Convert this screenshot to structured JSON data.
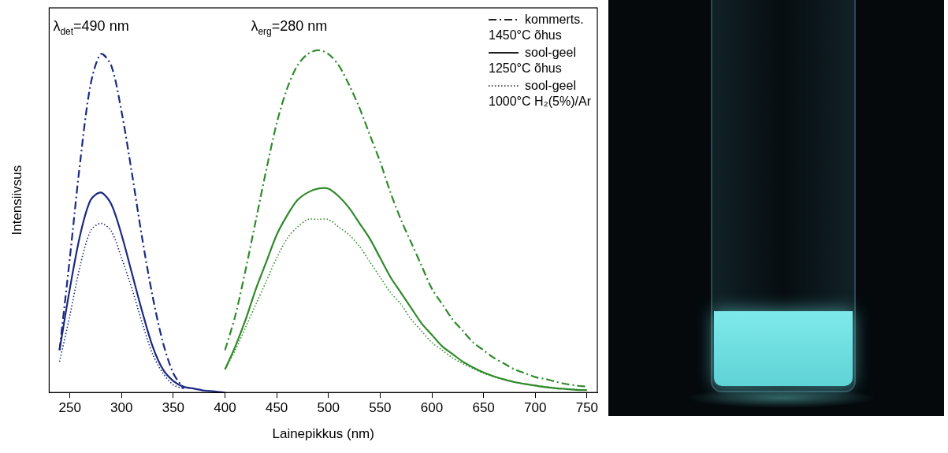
{
  "chart_data": {
    "type": "line",
    "x_label": "Lainepikkus (nm)",
    "y_label": "Intensiivsus",
    "annotations": [
      {
        "text": "λ",
        "subscript": "det",
        "text_after": "=490 nm"
      },
      {
        "text": "λ",
        "subscript": "erg",
        "text_after": "=280 nm"
      }
    ],
    "x": [
      240,
      250,
      260,
      270,
      280,
      290,
      300,
      310,
      320,
      330,
      340,
      350,
      360,
      370,
      380,
      390,
      400,
      410,
      420,
      430,
      440,
      450,
      460,
      470,
      480,
      490,
      500,
      510,
      520,
      530,
      540,
      550,
      560,
      570,
      580,
      590,
      600,
      610,
      620,
      630,
      640,
      650,
      660,
      670,
      680,
      690,
      700,
      710,
      720,
      730,
      740,
      750
    ],
    "series": [
      {
        "name": "kommerts.\n1450°C õhus",
        "color": "#1b2a80",
        "line_style": "dashdot",
        "values": [
          0.11,
          0.35,
          0.6,
          0.8,
          0.88,
          0.85,
          0.73,
          0.57,
          0.4,
          0.25,
          0.13,
          0.05,
          0.01,
          null,
          null,
          null,
          null,
          null,
          null,
          null,
          null,
          null,
          null,
          null,
          null,
          null,
          null,
          null,
          null,
          null,
          null,
          null,
          null,
          null,
          null,
          null,
          null,
          null,
          null,
          null,
          null,
          null,
          null,
          null,
          null,
          null,
          null,
          null,
          null,
          null,
          null,
          null
        ]
      },
      {
        "name": "sool-geel\n1250°C õhus",
        "color": "#1b2a80",
        "line_style": "solid",
        "values": [
          0.11,
          0.27,
          0.41,
          0.5,
          0.52,
          0.49,
          0.41,
          0.31,
          0.21,
          0.12,
          0.06,
          0.03,
          0.015,
          0.01,
          0.005,
          0.003,
          0,
          null,
          null,
          null,
          null,
          null,
          null,
          null,
          null,
          null,
          null,
          null,
          null,
          null,
          null,
          null,
          null,
          null,
          null,
          null,
          null,
          null,
          null,
          null,
          null,
          null,
          null,
          null,
          null,
          null,
          null,
          null,
          null,
          null,
          null,
          null
        ]
      },
      {
        "name": "sool-geel\n1000°C H₂(5%)/Ar",
        "color": "#1b2a80",
        "line_style": "dotted",
        "values": [
          0.08,
          0.2,
          0.33,
          0.42,
          0.44,
          0.42,
          0.35,
          0.27,
          0.18,
          0.1,
          0.05,
          0.02,
          0.01,
          null,
          null,
          null,
          null,
          null,
          null,
          null,
          null,
          null,
          null,
          null,
          null,
          null,
          null,
          null,
          null,
          null,
          null,
          null,
          null,
          null,
          null,
          null,
          null,
          null,
          null,
          null,
          null,
          null,
          null,
          null,
          null,
          null,
          null,
          null,
          null,
          null,
          null,
          null
        ]
      },
      {
        "name": "kommerts.\n1450°C õhus",
        "color": "#2f8a2a",
        "line_style": "dashdot",
        "values": [
          null,
          null,
          null,
          null,
          null,
          null,
          null,
          null,
          null,
          null,
          null,
          null,
          null,
          null,
          null,
          null,
          0.11,
          0.2,
          0.32,
          0.45,
          0.58,
          0.7,
          0.79,
          0.85,
          0.88,
          0.89,
          0.88,
          0.85,
          0.8,
          0.74,
          0.67,
          0.6,
          0.52,
          0.45,
          0.39,
          0.33,
          0.27,
          0.23,
          0.19,
          0.16,
          0.13,
          0.11,
          0.09,
          0.075,
          0.06,
          0.05,
          0.04,
          0.035,
          0.028,
          0.022,
          0.018,
          0.015
        ]
      },
      {
        "name": "sool-geel\n1250°C õhus",
        "color": "#2f8a2a",
        "line_style": "solid",
        "values": [
          null,
          null,
          null,
          null,
          null,
          null,
          null,
          null,
          null,
          null,
          null,
          null,
          null,
          null,
          null,
          null,
          0.06,
          0.12,
          0.19,
          0.27,
          0.34,
          0.41,
          0.46,
          0.5,
          0.52,
          0.53,
          0.53,
          0.51,
          0.48,
          0.44,
          0.4,
          0.35,
          0.3,
          0.26,
          0.22,
          0.18,
          0.15,
          0.12,
          0.1,
          0.08,
          0.065,
          0.052,
          0.042,
          0.034,
          0.027,
          0.022,
          0.018,
          0.014,
          0.011,
          0.009,
          0.007,
          0.006
        ]
      },
      {
        "name": "sool-geel\n1000°C H₂(5%)/Ar",
        "color": "#2f8a2a",
        "line_style": "dotted",
        "values": [
          null,
          null,
          null,
          null,
          null,
          null,
          null,
          null,
          null,
          null,
          null,
          null,
          null,
          null,
          null,
          null,
          0.06,
          0.11,
          0.17,
          0.23,
          0.29,
          0.35,
          0.4,
          0.43,
          0.45,
          0.45,
          0.45,
          0.43,
          0.41,
          0.38,
          0.34,
          0.3,
          0.26,
          0.23,
          0.19,
          0.16,
          0.13,
          0.11,
          0.09,
          0.075,
          0.062,
          0.05,
          0.041,
          0.033,
          0.027,
          0.022,
          0.018,
          0.015,
          0.012,
          0.01,
          0.008,
          0.006
        ]
      }
    ],
    "xlim": [
      230,
      760
    ],
    "xticks": [
      250,
      300,
      350,
      400,
      450,
      500,
      550,
      600,
      650,
      700,
      750
    ],
    "ylim": [
      0,
      1
    ],
    "tick_labels": "x",
    "grid": false,
    "legend": "top-right"
  }
}
